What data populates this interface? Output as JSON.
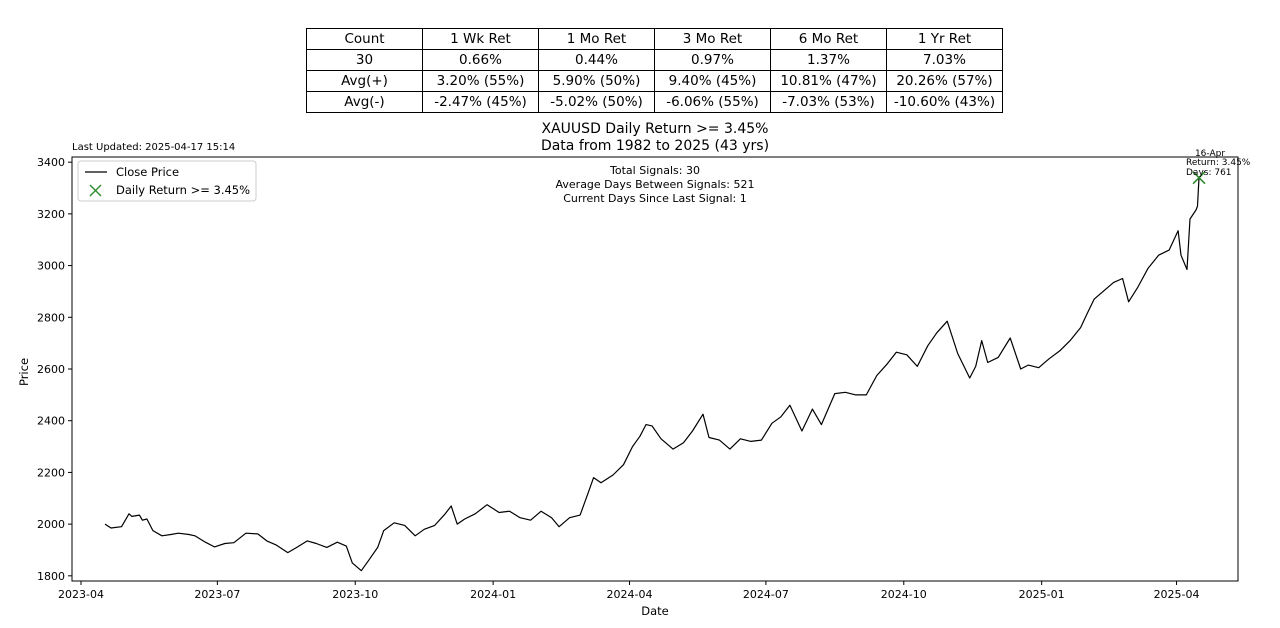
{
  "stats_table": {
    "header": [
      "Count",
      "1 Wk Ret",
      "1 Mo Ret",
      "3 Mo Ret",
      "6 Mo Ret",
      "1 Yr Ret"
    ],
    "rows": [
      [
        "30",
        "0.66%",
        "0.44%",
        "0.97%",
        "1.37%",
        "7.03%"
      ],
      [
        "Avg(+)",
        "3.20% (55%)",
        "5.90% (50%)",
        "9.40% (45%)",
        "10.81% (47%)",
        "20.26% (57%)"
      ],
      [
        "Avg(-)",
        "-2.47% (45%)",
        "-5.02% (50%)",
        "-6.06% (55%)",
        "-7.03% (53%)",
        "-10.60% (43%)"
      ]
    ]
  },
  "last_updated": "Last Updated: 2025-04-17 15:14",
  "summary": {
    "line1": "Total Signals: 30",
    "line2": "Average Days Between Signals: 521",
    "line3": "Current Days Since Last Signal: 1"
  },
  "signal_annotation": {
    "line1": "16-Apr",
    "line2": "Return: 3.45%",
    "line3": "Days: 761"
  },
  "colors": {
    "line": "#000000",
    "marker": "#2e8b2e",
    "frame": "#000000"
  },
  "chart_data": {
    "type": "line",
    "title": "XAUUSD Daily Return >= 3.45%",
    "subtitle": "Data from 1982 to 2025 (43 yrs)",
    "xlabel": "Date",
    "ylabel": "Price",
    "ylim": [
      1780,
      3420
    ],
    "xlim": [
      "2023-03-26",
      "2025-05-12"
    ],
    "yticks": [
      1800,
      2000,
      2200,
      2400,
      2600,
      2800,
      3000,
      3200,
      3400
    ],
    "xticks": [
      "2023-04",
      "2023-07",
      "2023-10",
      "2024-01",
      "2024-04",
      "2024-07",
      "2024-10",
      "2025-01",
      "2025-04"
    ],
    "legend": [
      "Close Price",
      "Daily Return >= 3.45%"
    ],
    "legend_position": "top-left",
    "grid": false,
    "series": [
      {
        "name": "Close Price",
        "points": [
          [
            "2023-04-17",
            2000
          ],
          [
            "2023-04-21",
            1985
          ],
          [
            "2023-04-28",
            1990
          ],
          [
            "2023-05-03",
            2040
          ],
          [
            "2023-05-05",
            2030
          ],
          [
            "2023-05-10",
            2035
          ],
          [
            "2023-05-12",
            2015
          ],
          [
            "2023-05-15",
            2020
          ],
          [
            "2023-05-19",
            1975
          ],
          [
            "2023-05-25",
            1955
          ],
          [
            "2023-05-31",
            1960
          ],
          [
            "2023-06-05",
            1965
          ],
          [
            "2023-06-12",
            1960
          ],
          [
            "2023-06-16",
            1955
          ],
          [
            "2023-06-23",
            1930
          ],
          [
            "2023-06-29",
            1912
          ],
          [
            "2023-07-06",
            1925
          ],
          [
            "2023-07-12",
            1928
          ],
          [
            "2023-07-20",
            1965
          ],
          [
            "2023-07-28",
            1962
          ],
          [
            "2023-08-03",
            1935
          ],
          [
            "2023-08-09",
            1920
          ],
          [
            "2023-08-17",
            1890
          ],
          [
            "2023-08-23",
            1910
          ],
          [
            "2023-08-30",
            1935
          ],
          [
            "2023-09-05",
            1925
          ],
          [
            "2023-09-12",
            1910
          ],
          [
            "2023-09-19",
            1930
          ],
          [
            "2023-09-25",
            1915
          ],
          [
            "2023-09-29",
            1850
          ],
          [
            "2023-10-05",
            1820
          ],
          [
            "2023-10-10",
            1860
          ],
          [
            "2023-10-16",
            1910
          ],
          [
            "2023-10-20",
            1975
          ],
          [
            "2023-10-27",
            2005
          ],
          [
            "2023-11-03",
            1995
          ],
          [
            "2023-11-10",
            1955
          ],
          [
            "2023-11-16",
            1980
          ],
          [
            "2023-11-23",
            1995
          ],
          [
            "2023-11-30",
            2040
          ],
          [
            "2023-12-04",
            2070
          ],
          [
            "2023-12-08",
            2000
          ],
          [
            "2023-12-13",
            2020
          ],
          [
            "2023-12-20",
            2040
          ],
          [
            "2023-12-28",
            2075
          ],
          [
            "2024-01-05",
            2045
          ],
          [
            "2024-01-12",
            2050
          ],
          [
            "2024-01-19",
            2025
          ],
          [
            "2024-01-26",
            2015
          ],
          [
            "2024-02-02",
            2050
          ],
          [
            "2024-02-09",
            2025
          ],
          [
            "2024-02-14",
            1990
          ],
          [
            "2024-02-21",
            2025
          ],
          [
            "2024-02-28",
            2035
          ],
          [
            "2024-03-04",
            2115
          ],
          [
            "2024-03-08",
            2180
          ],
          [
            "2024-03-13",
            2160
          ],
          [
            "2024-03-21",
            2190
          ],
          [
            "2024-03-28",
            2230
          ],
          [
            "2024-04-03",
            2300
          ],
          [
            "2024-04-08",
            2340
          ],
          [
            "2024-04-12",
            2385
          ],
          [
            "2024-04-16",
            2380
          ],
          [
            "2024-04-22",
            2330
          ],
          [
            "2024-04-30",
            2290
          ],
          [
            "2024-05-07",
            2315
          ],
          [
            "2024-05-13",
            2360
          ],
          [
            "2024-05-20",
            2425
          ],
          [
            "2024-05-24",
            2335
          ],
          [
            "2024-05-31",
            2325
          ],
          [
            "2024-06-07",
            2290
          ],
          [
            "2024-06-14",
            2330
          ],
          [
            "2024-06-21",
            2320
          ],
          [
            "2024-06-28",
            2325
          ],
          [
            "2024-07-05",
            2390
          ],
          [
            "2024-07-11",
            2415
          ],
          [
            "2024-07-17",
            2460
          ],
          [
            "2024-07-25",
            2360
          ],
          [
            "2024-08-01",
            2445
          ],
          [
            "2024-08-07",
            2385
          ],
          [
            "2024-08-16",
            2505
          ],
          [
            "2024-08-23",
            2510
          ],
          [
            "2024-08-30",
            2500
          ],
          [
            "2024-09-06",
            2500
          ],
          [
            "2024-09-13",
            2575
          ],
          [
            "2024-09-20",
            2620
          ],
          [
            "2024-09-26",
            2665
          ],
          [
            "2024-10-03",
            2655
          ],
          [
            "2024-10-10",
            2610
          ],
          [
            "2024-10-17",
            2690
          ],
          [
            "2024-10-23",
            2740
          ],
          [
            "2024-10-30",
            2785
          ],
          [
            "2024-11-06",
            2660
          ],
          [
            "2024-11-14",
            2565
          ],
          [
            "2024-11-18",
            2610
          ],
          [
            "2024-11-22",
            2710
          ],
          [
            "2024-11-26",
            2625
          ],
          [
            "2024-12-03",
            2645
          ],
          [
            "2024-12-11",
            2720
          ],
          [
            "2024-12-18",
            2600
          ],
          [
            "2024-12-23",
            2615
          ],
          [
            "2024-12-30",
            2605
          ],
          [
            "2025-01-06",
            2640
          ],
          [
            "2025-01-13",
            2670
          ],
          [
            "2025-01-20",
            2710
          ],
          [
            "2025-01-27",
            2760
          ],
          [
            "2025-01-31",
            2810
          ],
          [
            "2025-02-05",
            2870
          ],
          [
            "2025-02-11",
            2900
          ],
          [
            "2025-02-18",
            2935
          ],
          [
            "2025-02-24",
            2950
          ],
          [
            "2025-02-28",
            2860
          ],
          [
            "2025-03-06",
            2915
          ],
          [
            "2025-03-13",
            2990
          ],
          [
            "2025-03-20",
            3040
          ],
          [
            "2025-03-27",
            3060
          ],
          [
            "2025-04-02",
            3135
          ],
          [
            "2025-04-04",
            3040
          ],
          [
            "2025-04-08",
            2985
          ],
          [
            "2025-04-10",
            3180
          ],
          [
            "2025-04-14",
            3215
          ],
          [
            "2025-04-15",
            3230
          ],
          [
            "2025-04-16",
            3340
          ]
        ]
      },
      {
        "name": "Daily Return >= 3.45%",
        "points": [
          [
            "2025-04-16",
            3340
          ]
        ]
      }
    ]
  }
}
